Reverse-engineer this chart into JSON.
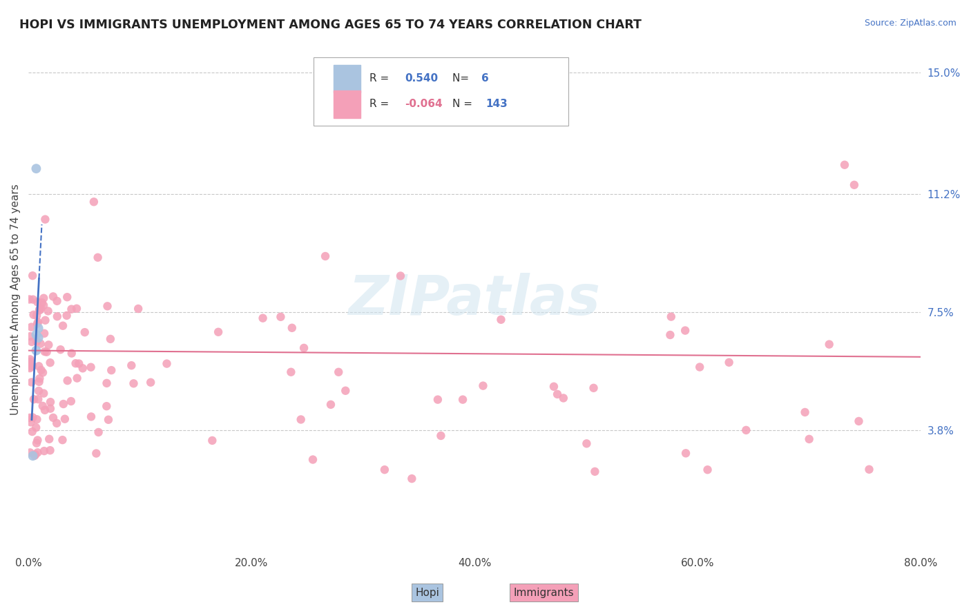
{
  "title": "HOPI VS IMMIGRANTS UNEMPLOYMENT AMONG AGES 65 TO 74 YEARS CORRELATION CHART",
  "source": "Source: ZipAtlas.com",
  "ylabel": "Unemployment Among Ages 65 to 74 years",
  "xlim": [
    0.0,
    0.8
  ],
  "ylim": [
    0.0,
    0.158
  ],
  "xtick_labels": [
    "0.0%",
    "20.0%",
    "40.0%",
    "60.0%",
    "80.0%"
  ],
  "xtick_vals": [
    0.0,
    0.2,
    0.4,
    0.6,
    0.8
  ],
  "ytick_labels": [
    "3.8%",
    "7.5%",
    "11.2%",
    "15.0%"
  ],
  "ytick_vals": [
    0.038,
    0.075,
    0.112,
    0.15
  ],
  "hopi_R": 0.54,
  "hopi_N": 6,
  "immigrants_R": -0.064,
  "immigrants_N": 143,
  "hopi_color": "#aac4e0",
  "hopi_line_color": "#4472c4",
  "immigrants_color": "#f4a0b8",
  "immigrants_line_color": "#e07090",
  "background_color": "#ffffff",
  "grid_color": "#c8c8c8",
  "hopi_x": [
    0.004,
    0.007,
    0.007,
    0.007,
    0.009,
    0.009
  ],
  "hopi_y": [
    0.03,
    0.12,
    0.068,
    0.063,
    0.07,
    0.067
  ]
}
